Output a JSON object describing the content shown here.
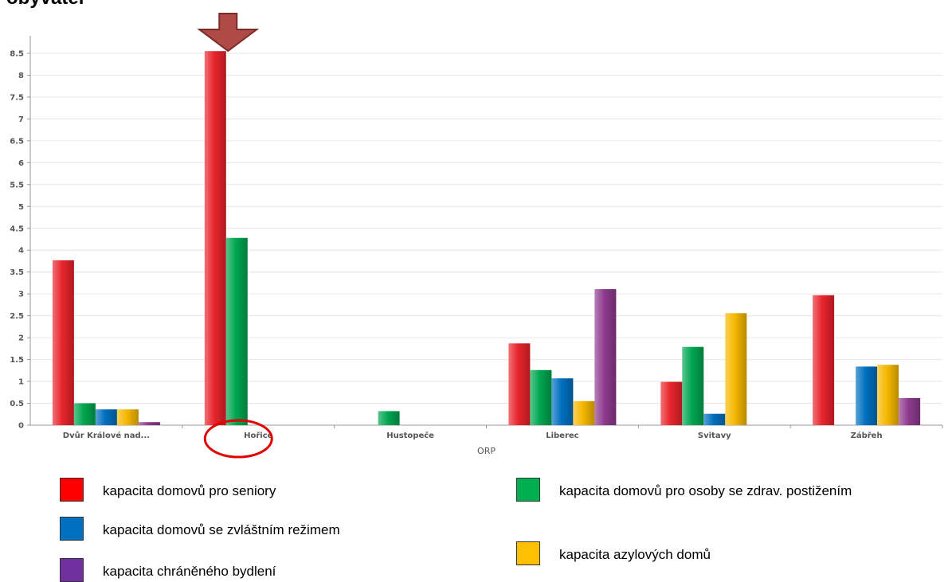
{
  "title": "obyvatel",
  "chart_data": {
    "type": "bar",
    "title": "obyvatel",
    "xlabel": "ORP",
    "ylabel": "",
    "ylim": [
      0,
      8.9
    ],
    "yticks": [
      0,
      0.5,
      1,
      1.5,
      2,
      2.5,
      3,
      3.5,
      4,
      4.5,
      5,
      5.5,
      6,
      6.5,
      7,
      7.5,
      8,
      8.5
    ],
    "grid": true,
    "legend_position": "bottom",
    "categories": [
      "Dvůr Králové nad...",
      "Hořice",
      "Hustopeče",
      "Liberec",
      "Svitavy",
      "Zábřeh"
    ],
    "series": [
      {
        "name": "kapacita domovů pro seniory",
        "color": "#e8242b",
        "values": [
          3.77,
          8.55,
          0,
          1.87,
          0.99,
          2.97
        ]
      },
      {
        "name": "kapacita domovů pro osoby se zdrav. postižením",
        "color": "#00a650",
        "values": [
          0.5,
          4.28,
          0.32,
          1.26,
          1.79,
          0
        ]
      },
      {
        "name": "kapacita domovů se zvláštním režimem",
        "color": "#0070c0",
        "values": [
          0.36,
          0,
          0,
          1.07,
          0.26,
          1.34
        ]
      },
      {
        "name": "kapacita azylových domů",
        "color": "#f5b800",
        "values": [
          0.36,
          0,
          0,
          0.55,
          2.56,
          1.38
        ]
      },
      {
        "name": "kapacita chráněného bydlení",
        "color": "#8e3a8e",
        "values": [
          0.07,
          0,
          0,
          3.11,
          0,
          0.62
        ]
      }
    ],
    "annotations": [
      {
        "type": "arrow-down",
        "target_category": "Hořice",
        "color": "#b04a45"
      },
      {
        "type": "ellipse",
        "target_category": "Hořice",
        "color": "#e00000"
      }
    ]
  },
  "legend": [
    {
      "label": "kapacita domovů pro seniory",
      "color": "#ff0000"
    },
    {
      "label": "kapacita domovů pro osoby se zdrav. postižením",
      "color": "#00b050"
    },
    {
      "label": "kapacita domovů se zvláštním režimem",
      "color": "#0070c0"
    },
    {
      "label": "kapacita azylových domů",
      "color": "#ffc000"
    },
    {
      "label": "kapacita chráněného bydlení",
      "color": "#7030a0"
    }
  ]
}
